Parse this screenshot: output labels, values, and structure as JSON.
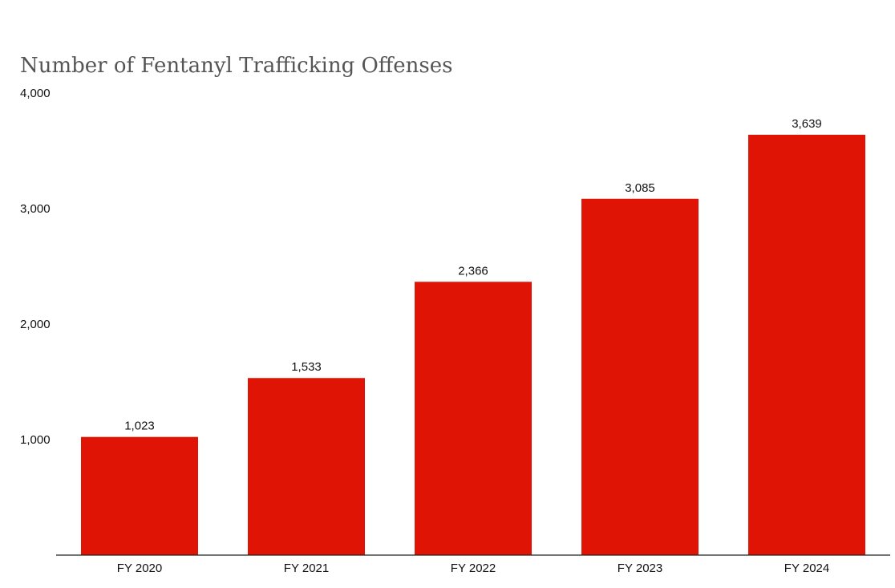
{
  "chart_data": {
    "type": "bar",
    "title": "Number of Fentanyl Trafficking Offenses",
    "xlabel": "",
    "ylabel": "",
    "categories": [
      "FY 2020",
      "FY 2021",
      "FY 2022",
      "FY 2023",
      "FY 2024"
    ],
    "values": [
      1023,
      1533,
      2366,
      3085,
      3639
    ],
    "value_labels": [
      "1,023",
      "1,533",
      "2,366",
      "3,085",
      "3,639"
    ],
    "ylim": [
      0,
      4000
    ],
    "yticks": [
      1000,
      2000,
      3000,
      4000
    ],
    "ytick_labels": [
      "1,000",
      "2,000",
      "3,000",
      "4,000"
    ],
    "grid": false,
    "legend": "none",
    "bar_color": "#df1405"
  }
}
